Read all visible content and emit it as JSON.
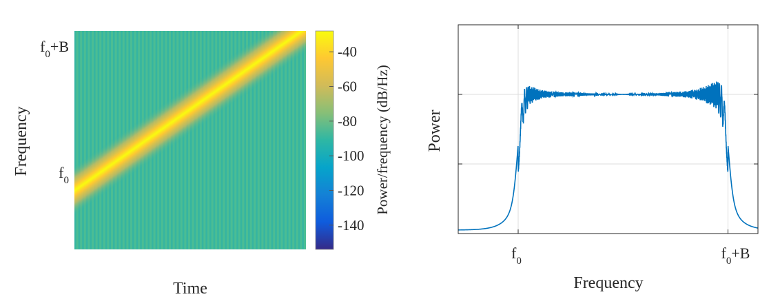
{
  "chart_data": [
    {
      "type": "heatmap",
      "title": "",
      "xlabel": "Time",
      "ylabel": "Frequency",
      "yticks": [
        {
          "value": 0,
          "base": "f",
          "sub": "0",
          "suffix": ""
        },
        {
          "value": 1,
          "base": "f",
          "sub": "0",
          "suffix": "+B"
        }
      ],
      "ylim_normalized": [
        -0.35,
        1.1
      ],
      "description_series": {
        "name": "linear chirp",
        "start_frequency": 0.04,
        "end_frequency": 1.12,
        "peak_level_db": -30,
        "background_level_db": -85
      },
      "colorbar": {
        "label": "Power/frequency (dB/Hz)",
        "ticks": [
          -40,
          -60,
          -80,
          -100,
          -120,
          -140
        ],
        "range": [
          -154,
          -28
        ],
        "colormap": [
          "#352a87",
          "#0f5cdd",
          "#1481d6",
          "#06a4ca",
          "#2eb7a4",
          "#87bf77",
          "#d1bb59",
          "#fec832",
          "#f9fb0e"
        ]
      }
    },
    {
      "type": "line",
      "title": "",
      "xlabel": "Power",
      "ylabel": "Power",
      "x_axis_label": "Frequency",
      "xticks": [
        {
          "value": 0.2,
          "base": "f",
          "sub": "0",
          "suffix": ""
        },
        {
          "value": 0.9,
          "base": "f",
          "sub": "0",
          "suffix": "+B"
        }
      ],
      "xlim": [
        0,
        1
      ],
      "ylim": [
        0,
        3
      ],
      "grid": true,
      "ygrid": [
        1,
        2
      ],
      "series": [
        {
          "name": "spectrum",
          "color": "#0072bd",
          "band_start": 0.2,
          "band_end": 0.9,
          "plateau": 2.0,
          "edge_peak": 2.36,
          "tail_level": 0.05
        }
      ]
    }
  ]
}
